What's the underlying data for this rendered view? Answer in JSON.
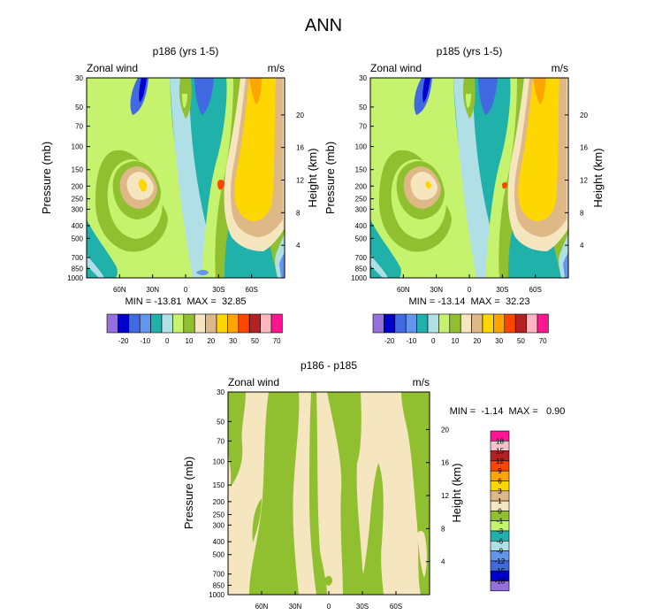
{
  "main_title": "ANN",
  "variable_label": "Zonal wind",
  "units_label": "m/s",
  "left_axis_label": "Pressure (mb)",
  "right_axis_label": "Height (km)",
  "panels": [
    {
      "id": "p186",
      "title": "p186 (yrs 1-5)",
      "stats": "MIN = -13.81  MAX =  32.85"
    },
    {
      "id": "p185",
      "title": "p185 (yrs 1-5)",
      "stats": "MIN = -13.14  MAX =  32.23"
    },
    {
      "id": "diff",
      "title": "p186 - p185",
      "stats": "MIN =  -1.14  MAX =   0.90"
    }
  ],
  "chart_data": [
    {
      "type": "heatmap",
      "title": "p186 (yrs 1-5)",
      "xlabel": "",
      "ylabel": "Pressure (mb)",
      "ylabel_right": "Height (km)",
      "x_ticks": [
        "60N",
        "30N",
        "0",
        "30S",
        "60S"
      ],
      "x_tick_values": [
        60,
        30,
        0,
        -30,
        -60
      ],
      "xlim": [
        90,
        -90
      ],
      "pressure_ticks": [
        "30",
        "50",
        "70",
        "100",
        "150",
        "200",
        "250",
        "300",
        "400",
        "500",
        "700",
        "850",
        "1000"
      ],
      "pressure_values": [
        30,
        50,
        70,
        100,
        150,
        200,
        250,
        300,
        400,
        500,
        700,
        850,
        1000
      ],
      "ylim": [
        1000,
        30
      ],
      "height_ticks": [
        "4",
        "8",
        "12",
        "16",
        "20"
      ],
      "height_values": [
        4,
        8,
        12,
        16,
        20
      ],
      "min": -13.81,
      "max": 32.85
    },
    {
      "type": "heatmap",
      "title": "p185 (yrs 1-5)",
      "xlabel": "",
      "ylabel": "Pressure (mb)",
      "ylabel_right": "Height (km)",
      "x_ticks": [
        "60N",
        "30N",
        "0",
        "30S",
        "60S"
      ],
      "x_tick_values": [
        60,
        30,
        0,
        -30,
        -60
      ],
      "xlim": [
        90,
        -90
      ],
      "pressure_ticks": [
        "30",
        "50",
        "70",
        "100",
        "150",
        "200",
        "250",
        "300",
        "400",
        "500",
        "700",
        "850",
        "1000"
      ],
      "pressure_values": [
        30,
        50,
        70,
        100,
        150,
        200,
        250,
        300,
        400,
        500,
        700,
        850,
        1000
      ],
      "ylim": [
        1000,
        30
      ],
      "height_ticks": [
        "4",
        "8",
        "12",
        "16",
        "20"
      ],
      "height_values": [
        4,
        8,
        12,
        16,
        20
      ],
      "min": -13.14,
      "max": 32.23
    },
    {
      "type": "heatmap",
      "title": "p186 - p185",
      "xlabel": "",
      "ylabel": "Pressure (mb)",
      "ylabel_right": "Height (km)",
      "x_ticks": [
        "60N",
        "30N",
        "0",
        "30S",
        "60S"
      ],
      "x_tick_values": [
        60,
        30,
        0,
        -30,
        -60
      ],
      "xlim": [
        90,
        -90
      ],
      "pressure_ticks": [
        "30",
        "50",
        "70",
        "100",
        "150",
        "200",
        "250",
        "300",
        "400",
        "500",
        "700",
        "850",
        "1000"
      ],
      "pressure_values": [
        30,
        50,
        70,
        100,
        150,
        200,
        250,
        300,
        400,
        500,
        700,
        850,
        1000
      ],
      "ylim": [
        1000,
        30
      ],
      "height_ticks": [
        "4",
        "8",
        "12",
        "16",
        "20"
      ],
      "height_values": [
        4,
        8,
        12,
        16,
        20
      ],
      "min": -1.14,
      "max": 0.9
    }
  ],
  "colorbar_main": {
    "colors": [
      "#9370db",
      "#0000cd",
      "#4169e1",
      "#6495ed",
      "#20b2aa",
      "#b0e0e6",
      "#c6f36e",
      "#90c030",
      "#f5e6c0",
      "#deb887",
      "#ffd700",
      "#ffa500",
      "#ff4500",
      "#b22222",
      "#ffb6c1",
      "#ff1493"
    ],
    "labels": [
      "-20",
      "-10",
      "0",
      "10",
      "20",
      "30",
      "50",
      "70"
    ]
  },
  "colorbar_diff": {
    "colors_top_to_bottom": [
      "#ff1493",
      "#ffc0cb",
      "#b22222",
      "#ff4500",
      "#ffa500",
      "#ffd700",
      "#deb887",
      "#f5e6c0",
      "#90c030",
      "#c6f36e",
      "#20b2aa",
      "#b0e0e6",
      "#6495ed",
      "#4169e1",
      "#0000cd",
      "#9370db"
    ],
    "labels_top_to_bottom": [
      "18",
      "15",
      "12",
      "9",
      "6",
      "3",
      "1",
      "0",
      "-1",
      "-3",
      "-6",
      "-9",
      "-12",
      "-15",
      "-18"
    ]
  }
}
